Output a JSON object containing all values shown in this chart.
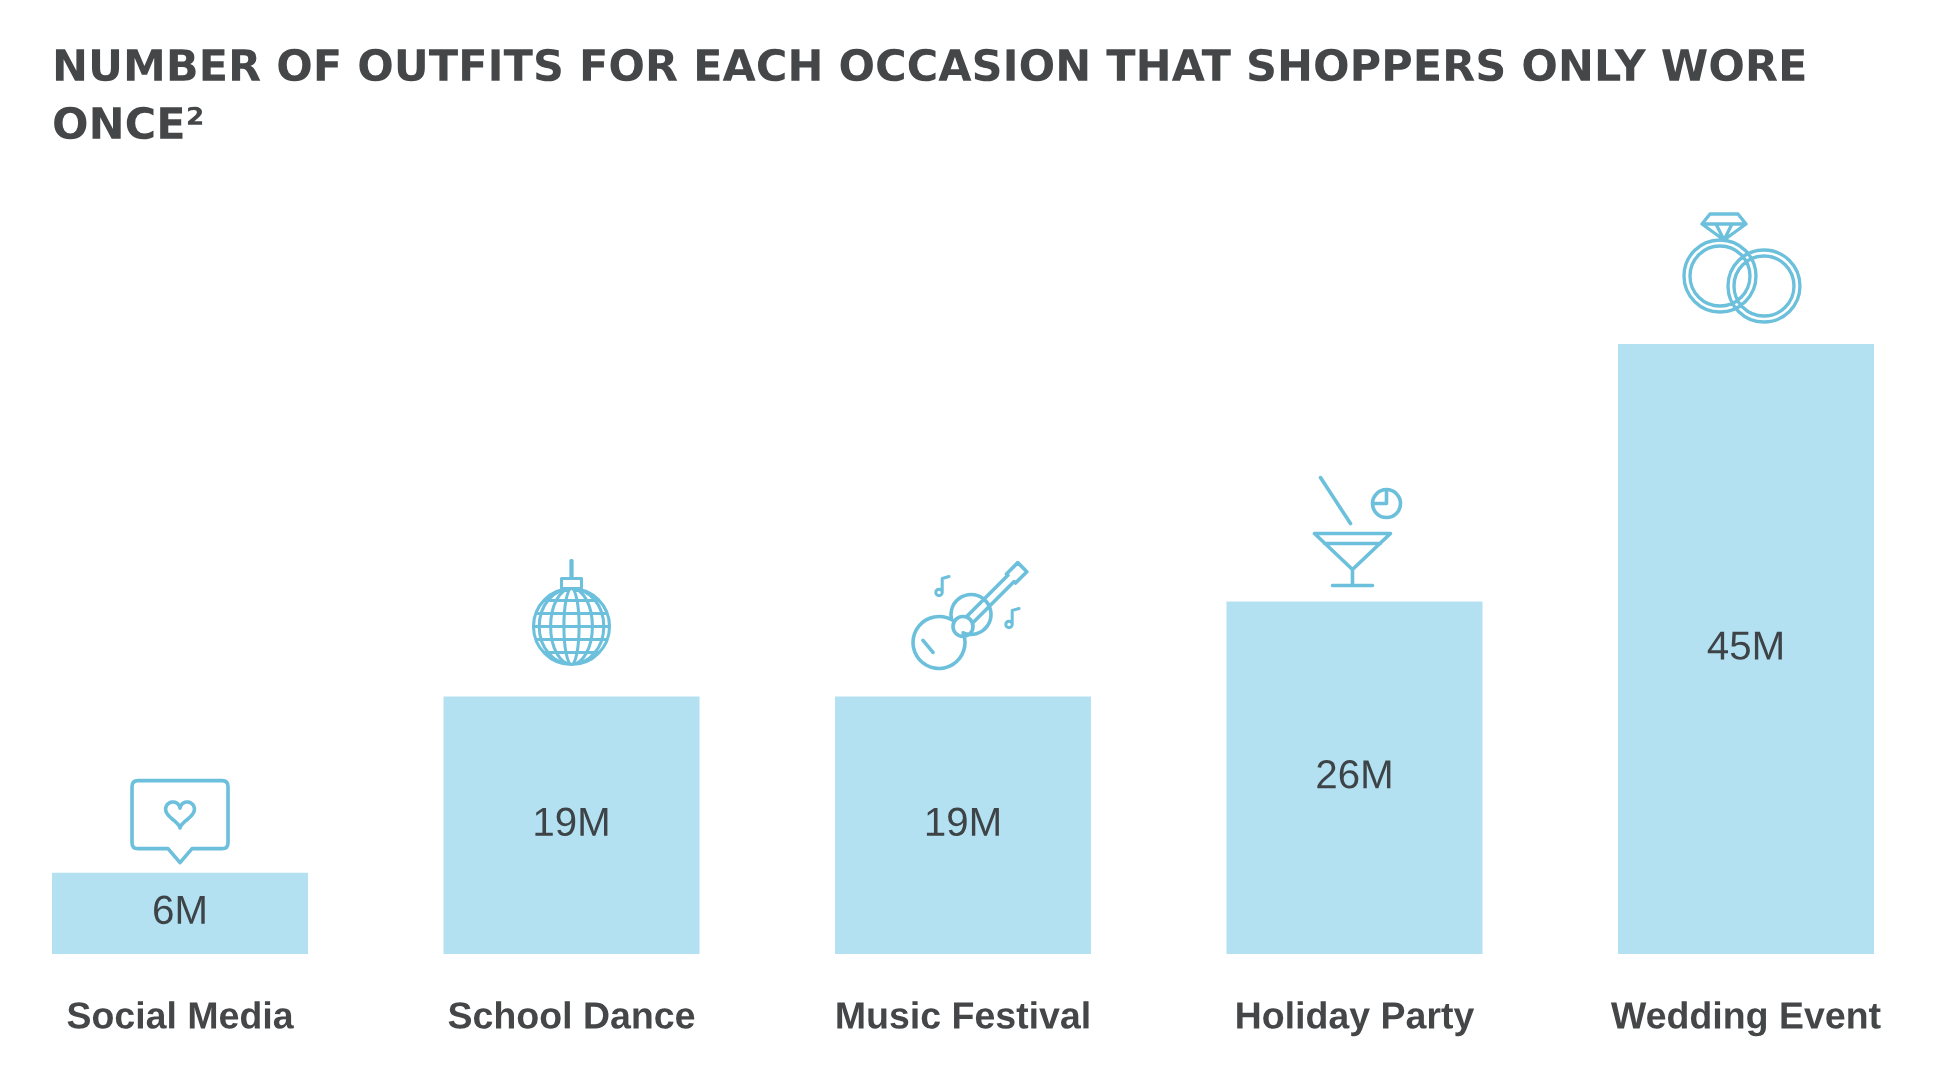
{
  "chart_data": {
    "type": "bar",
    "title": "NUMBER OF OUTFITS FOR EACH OCCASION THAT SHOPPERS ONLY WORE ONCE²",
    "categories": [
      "Social Media",
      "School Dance",
      "Music Festival",
      "Holiday Party",
      "Wedding Event"
    ],
    "values": [
      6,
      19,
      19,
      26,
      45
    ],
    "value_labels": [
      "6M",
      "19M",
      "19M",
      "26M",
      "45M"
    ],
    "color": "#b3e1f1",
    "tick_labels": "x"
  }
}
